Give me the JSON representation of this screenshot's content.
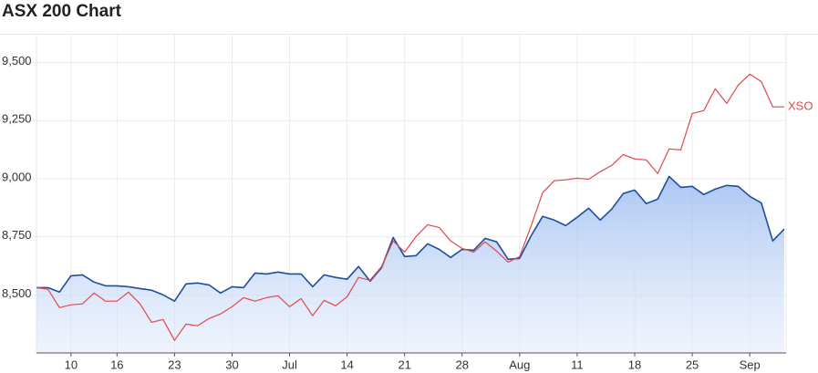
{
  "chart_data": {
    "type": "line",
    "title": "ASX 200 Chart",
    "categories": [
      null,
      null,
      null,
      "10",
      null,
      null,
      null,
      "16",
      null,
      null,
      null,
      null,
      "23",
      null,
      null,
      null,
      null,
      "30",
      null,
      null,
      null,
      null,
      "Jul",
      null,
      null,
      null,
      null,
      "14",
      null,
      null,
      null,
      null,
      "21",
      null,
      null,
      null,
      null,
      "28",
      null,
      null,
      null,
      null,
      "Aug",
      null,
      null,
      null,
      null,
      "11",
      null,
      null,
      null,
      null,
      "18",
      null,
      null,
      null,
      null,
      "25",
      null,
      null,
      null,
      null,
      "Sep",
      null,
      null,
      null
    ],
    "series": [
      {
        "color": "#1f4e9c",
        "fill": true,
        "values": [
          8531,
          8531,
          8512,
          8582,
          8586,
          8555,
          8539,
          8539,
          8535,
          8527,
          8520,
          8500,
          8473,
          8547,
          8551,
          8543,
          8508,
          8535,
          8531,
          8594,
          8590,
          8598,
          8590,
          8590,
          8535,
          8586,
          8575,
          8567,
          8622,
          8559,
          8618,
          8747,
          8665,
          8669,
          8720,
          8696,
          8661,
          8696,
          8692,
          8743,
          8728,
          8653,
          8657,
          8755,
          8838,
          8822,
          8798,
          8834,
          8873,
          8822,
          8869,
          8936,
          8951,
          8893,
          8912,
          9010,
          8963,
          8967,
          8932,
          8955,
          8971,
          8967,
          8924,
          8896,
          8732,
          8783
        ]
      },
      {
        "name": "XSO",
        "color": "#e0484a",
        "fill": false,
        "values": [
          8531,
          8524,
          8445,
          8457,
          8461,
          8508,
          8473,
          8473,
          8512,
          8461,
          8382,
          8394,
          8304,
          8374,
          8367,
          8398,
          8418,
          8449,
          8488,
          8473,
          8488,
          8496,
          8449,
          8484,
          8410,
          8476,
          8453,
          8492,
          8575,
          8563,
          8622,
          8732,
          8684,
          8751,
          8802,
          8790,
          8732,
          8700,
          8684,
          8728,
          8688,
          8641,
          8665,
          8798,
          8940,
          8991,
          8995,
          9002,
          8998,
          9030,
          9057,
          9104,
          9085,
          9081,
          9022,
          9128,
          9124,
          9281,
          9293,
          9387,
          9324,
          9403,
          9450,
          9418,
          9309,
          9309
        ]
      }
    ],
    "ylim": [
      8250,
      9620
    ],
    "yticks": [
      {
        "value": 8500,
        "label": "8,500"
      },
      {
        "value": 8750,
        "label": "8,750"
      },
      {
        "value": 9000,
        "label": "9,000"
      },
      {
        "value": 9250,
        "label": "9,250"
      },
      {
        "value": 9500,
        "label": "9,500"
      }
    ],
    "grid": true
  }
}
